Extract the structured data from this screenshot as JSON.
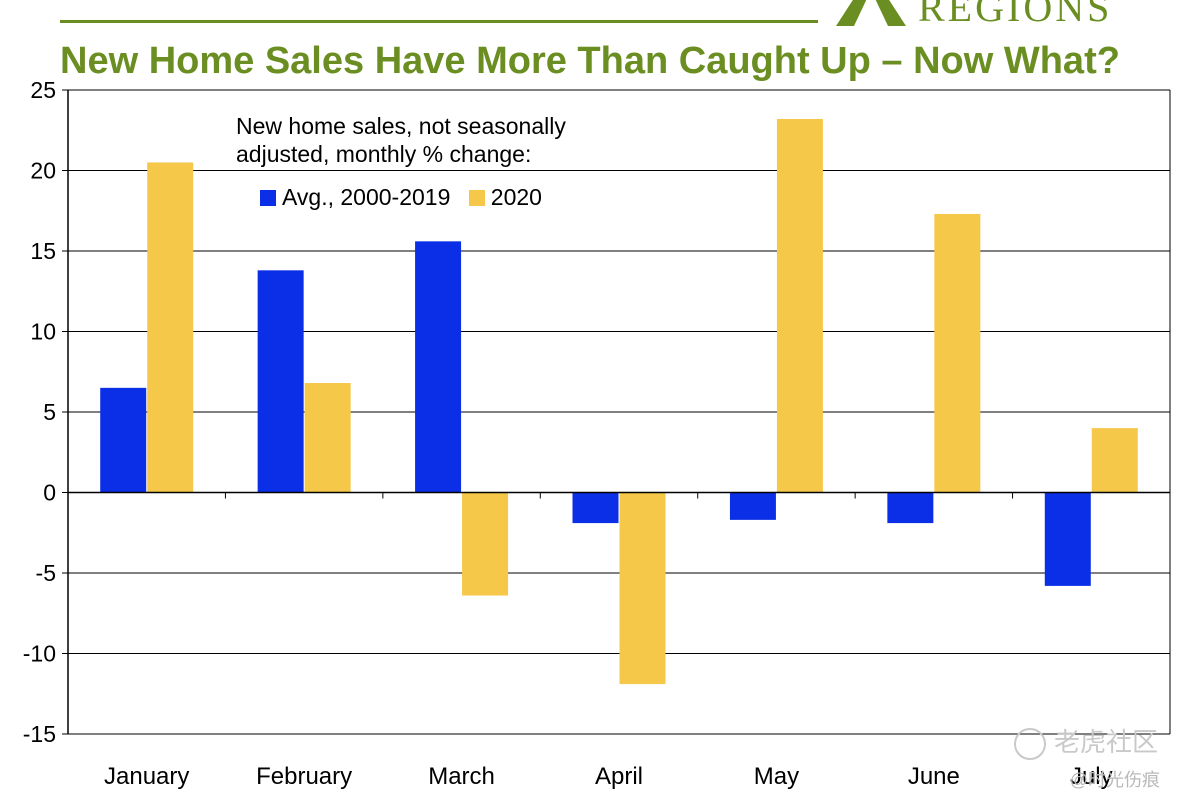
{
  "title": "New Home Sales Have More Than Caught Up – Now What?",
  "brand": {
    "name": "REGIONS",
    "color": "#6b8e23",
    "logo_icon": "regions-triangle-logo"
  },
  "colors": {
    "title": "#6b8e23",
    "series1": "#0a2fe6",
    "series2": "#f5c84a",
    "grid": "#000000"
  },
  "watermark": {
    "text": "老虎社区",
    "handle": "@时光伤痕",
    "icon": "tiger-community-icon"
  },
  "chart_data": {
    "type": "bar",
    "legend_title": "New home sales, not seasonally adjusted, monthly % change:",
    "categories": [
      "January",
      "February",
      "March",
      "April",
      "May",
      "June",
      "July"
    ],
    "series": [
      {
        "name": "Avg., 2000-2019",
        "values": [
          6.5,
          13.8,
          15.6,
          -1.9,
          -1.7,
          -1.9,
          -5.8
        ]
      },
      {
        "name": "2020",
        "values": [
          20.5,
          6.8,
          -6.4,
          -11.9,
          23.2,
          17.3,
          4.0
        ]
      }
    ],
    "ylim": [
      -15,
      25
    ],
    "yticks": [
      25,
      20,
      15,
      10,
      5,
      0,
      -5,
      -10,
      -15
    ],
    "xlabel": "",
    "ylabel": "",
    "grid": true,
    "legend_position": "top-left"
  }
}
